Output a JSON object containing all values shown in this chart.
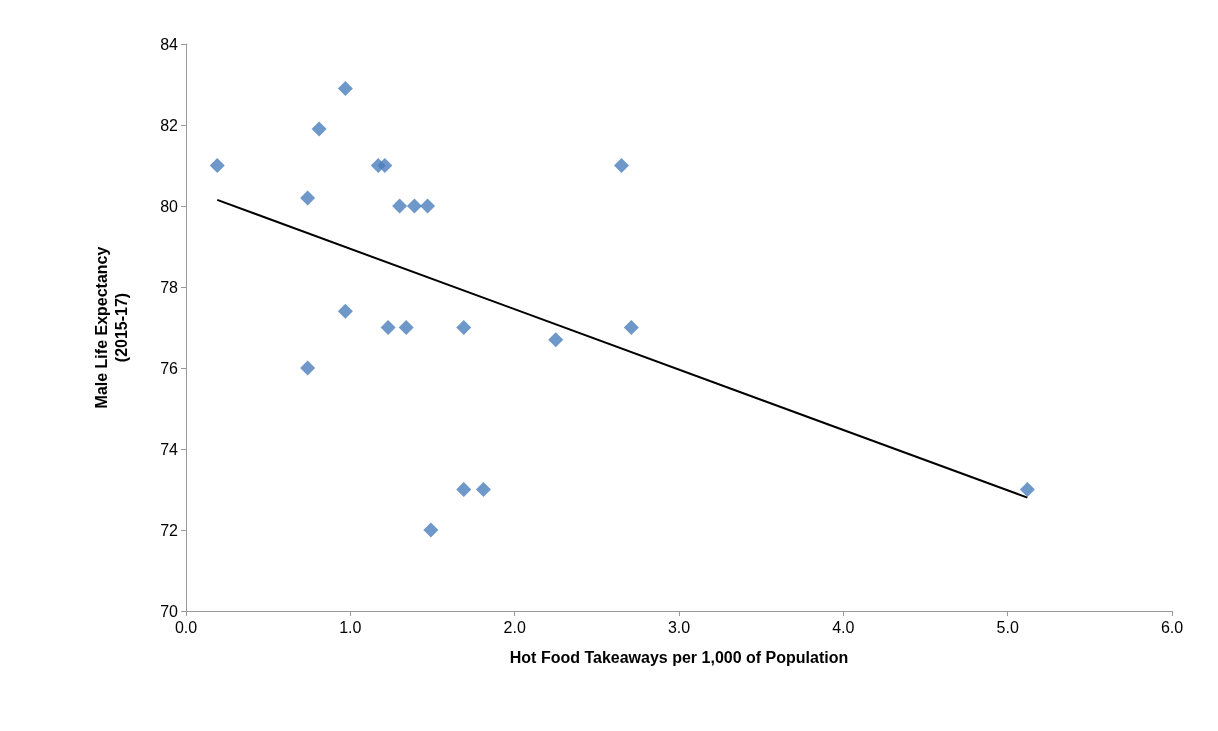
{
  "chart_data": {
    "type": "scatter",
    "xlabel": "Hot Food Takeaways per 1,000 of Population",
    "ylabel": "Male Life Expectancy\n(2015-17)",
    "marker": "diamond",
    "grid": false,
    "xlim": [
      0,
      6
    ],
    "xticks": [
      {
        "value": 0,
        "label": "0.0"
      },
      {
        "value": 1,
        "label": "1.0"
      },
      {
        "value": 2,
        "label": "2.0"
      },
      {
        "value": 3,
        "label": "3.0"
      },
      {
        "value": 4,
        "label": "4.0"
      },
      {
        "value": 5,
        "label": "5.0"
      },
      {
        "value": 6,
        "label": "6.0"
      }
    ],
    "ylim": [
      70,
      84
    ],
    "yticks": [
      70,
      72,
      74,
      76,
      78,
      80,
      82,
      84
    ],
    "series": [
      {
        "color": "#4a7ebb",
        "x": [
          0.19,
          0.81,
          0.97,
          0.74,
          1.17,
          1.21,
          1.3,
          1.39,
          1.47,
          0.97,
          0.74,
          1.23,
          1.34,
          1.69,
          2.25,
          2.65,
          2.71,
          1.69,
          1.81,
          1.49,
          5.12
        ],
        "values": [
          81.0,
          81.9,
          82.9,
          80.2,
          81.0,
          81.0,
          80.0,
          80.0,
          80.0,
          77.4,
          76.0,
          77.0,
          77.0,
          77.0,
          76.7,
          81.0,
          77.0,
          73.0,
          73.0,
          72.0,
          73.0
        ]
      },
      {
        "type": "line",
        "color": "#000000",
        "marker": "none",
        "x": [
          0.19,
          5.12
        ],
        "values": [
          80.15,
          72.8
        ]
      }
    ]
  }
}
